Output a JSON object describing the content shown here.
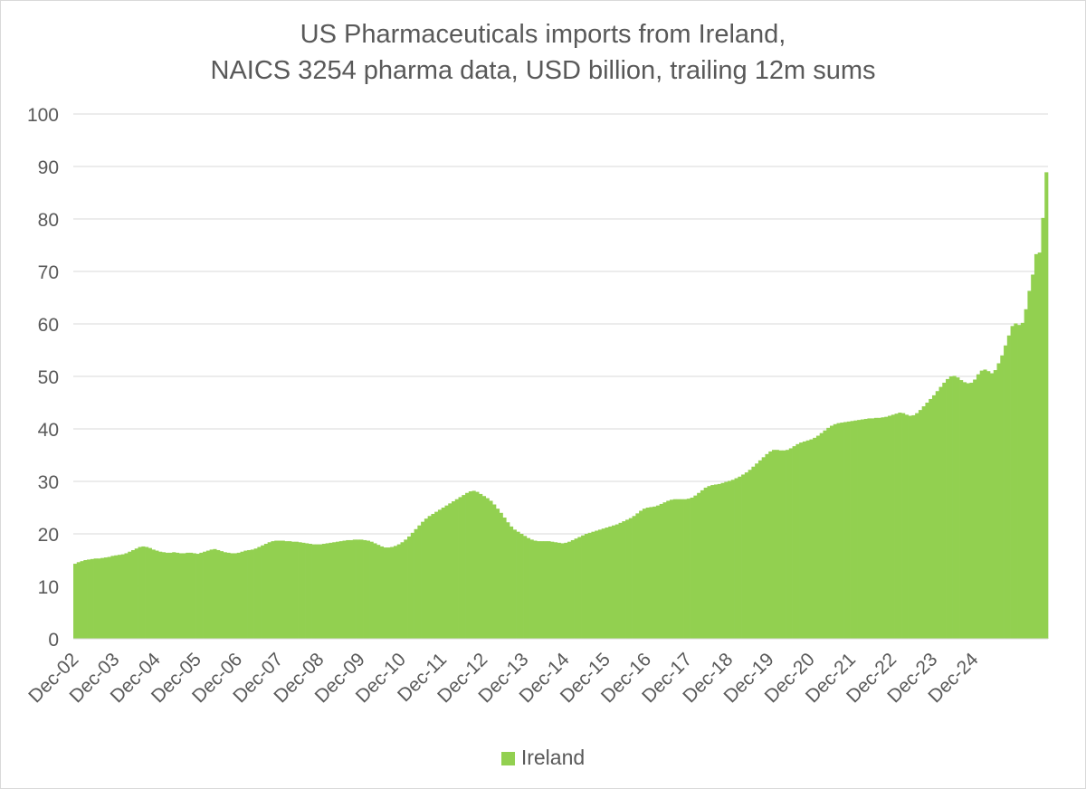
{
  "chart_data": {
    "type": "bar",
    "title_line1": "US Pharmaceuticals imports from Ireland,",
    "title_line2": "NAICS 3254 pharma data, USD billion, trailing 12m sums",
    "xlabel": "",
    "ylabel": "",
    "ylim": [
      0,
      100
    ],
    "y_ticks": [
      0,
      10,
      20,
      30,
      40,
      50,
      60,
      70,
      80,
      90,
      100
    ],
    "x_tick_labels": [
      "Dec-02",
      "Dec-03",
      "Dec-04",
      "Dec-05",
      "Dec-06",
      "Dec-07",
      "Dec-08",
      "Dec-09",
      "Dec-10",
      "Dec-11",
      "Dec-12",
      "Dec-13",
      "Dec-14",
      "Dec-15",
      "Dec-16",
      "Dec-17",
      "Dec-18",
      "Dec-19",
      "Dec-20",
      "Dec-21",
      "Dec-22",
      "Dec-23",
      "Dec-24"
    ],
    "grid": true,
    "legend_position": "bottom",
    "series": [
      {
        "name": "Ireland",
        "color": "#92d050",
        "x_start": "Dec-02",
        "x_end": "Feb-25",
        "frequency": "monthly",
        "values": [
          14.3,
          14.6,
          14.8,
          15.0,
          15.1,
          15.2,
          15.3,
          15.3,
          15.4,
          15.5,
          15.6,
          15.8,
          15.9,
          16.0,
          16.1,
          16.3,
          16.6,
          16.9,
          17.2,
          17.5,
          17.6,
          17.5,
          17.3,
          17.0,
          16.8,
          16.6,
          16.5,
          16.4,
          16.4,
          16.5,
          16.4,
          16.3,
          16.3,
          16.4,
          16.4,
          16.3,
          16.2,
          16.4,
          16.6,
          16.8,
          17.0,
          17.1,
          16.9,
          16.7,
          16.5,
          16.4,
          16.3,
          16.3,
          16.4,
          16.6,
          16.8,
          16.9,
          17.0,
          17.2,
          17.5,
          17.8,
          18.1,
          18.4,
          18.6,
          18.7,
          18.7,
          18.7,
          18.6,
          18.6,
          18.5,
          18.5,
          18.4,
          18.3,
          18.2,
          18.1,
          18.0,
          18.0,
          18.0,
          18.1,
          18.2,
          18.3,
          18.4,
          18.5,
          18.6,
          18.7,
          18.8,
          18.8,
          18.9,
          18.9,
          18.9,
          18.8,
          18.7,
          18.5,
          18.2,
          17.9,
          17.6,
          17.4,
          17.4,
          17.5,
          17.7,
          18.0,
          18.4,
          18.9,
          19.5,
          20.2,
          20.9,
          21.6,
          22.3,
          22.9,
          23.4,
          23.8,
          24.2,
          24.6,
          25.0,
          25.4,
          25.8,
          26.2,
          26.6,
          27.0,
          27.4,
          27.8,
          28.1,
          28.2,
          28.0,
          27.6,
          27.2,
          26.8,
          26.3,
          25.6,
          24.8,
          24.0,
          23.1,
          22.2,
          21.4,
          20.8,
          20.4,
          20.0,
          19.6,
          19.2,
          18.9,
          18.7,
          18.6,
          18.6,
          18.6,
          18.6,
          18.5,
          18.4,
          18.3,
          18.2,
          18.3,
          18.5,
          18.8,
          19.1,
          19.4,
          19.7,
          20.0,
          20.2,
          20.4,
          20.6,
          20.8,
          21.0,
          21.2,
          21.4,
          21.6,
          21.8,
          22.1,
          22.4,
          22.7,
          23.0,
          23.4,
          23.9,
          24.4,
          24.8,
          25.0,
          25.1,
          25.2,
          25.4,
          25.7,
          26.0,
          26.3,
          26.5,
          26.6,
          26.6,
          26.6,
          26.6,
          26.7,
          26.9,
          27.3,
          27.8,
          28.3,
          28.8,
          29.1,
          29.3,
          29.4,
          29.5,
          29.7,
          29.9,
          30.1,
          30.3,
          30.6,
          30.9,
          31.3,
          31.7,
          32.2,
          32.8,
          33.4,
          34.0,
          34.6,
          35.2,
          35.7,
          36.0,
          36.0,
          35.9,
          35.9,
          36.0,
          36.3,
          36.7,
          37.1,
          37.4,
          37.6,
          37.8,
          38.0,
          38.3,
          38.7,
          39.2,
          39.7,
          40.2,
          40.6,
          40.9,
          41.1,
          41.2,
          41.3,
          41.4,
          41.5,
          41.6,
          41.7,
          41.8,
          41.9,
          42.0,
          42.0,
          42.1,
          42.1,
          42.2,
          42.3,
          42.5,
          42.7,
          42.9,
          43.1,
          43.0,
          42.7,
          42.5,
          42.6,
          43.0,
          43.6,
          44.3,
          45.0,
          45.7,
          46.4,
          47.2,
          48.0,
          48.8,
          49.5,
          50.0,
          50.1,
          49.8,
          49.3,
          48.9,
          48.7,
          48.8,
          49.4,
          50.4,
          51.1,
          51.3,
          51.0,
          50.6,
          51.2,
          52.5,
          54.0,
          55.9,
          57.8,
          59.6,
          60.1,
          59.8,
          60.2,
          62.8,
          66.3,
          69.4,
          73.3,
          73.6,
          80.2,
          88.9
        ]
      }
    ]
  }
}
